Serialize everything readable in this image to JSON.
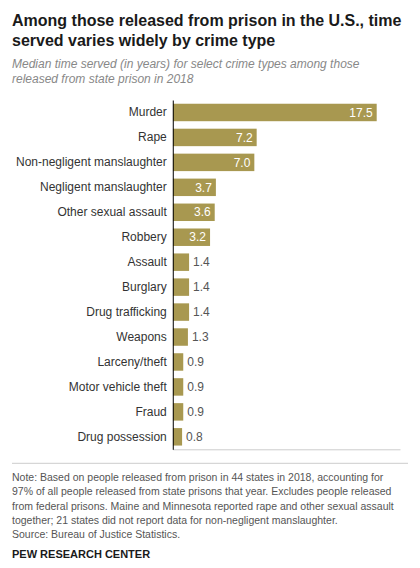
{
  "chart_data": {
    "type": "bar",
    "orientation": "horizontal",
    "title": "Among those released from prison in the U.S., time\nserved varies widely by crime type",
    "subtitle": "Median time served (in years) for select crime types among those\nreleased from state prison in 2018",
    "categories": [
      "Drug possession",
      "Fraud",
      "Motor vehicle theft",
      "Larceny/theft",
      "Weapons",
      "Drug trafficking",
      "Burglary",
      "Assault",
      "Robbery",
      "Other sexual assault",
      "Negligent manslaughter",
      "Non-negligent manslaughter",
      "Rape",
      "Murder"
    ],
    "values": [
      0.8,
      0.9,
      0.9,
      0.9,
      1.3,
      1.4,
      1.4,
      1.4,
      3.2,
      3.6,
      3.7,
      7.0,
      7.2,
      17.5
    ],
    "value_labels": [
      "0.8",
      "0.9",
      "0.9",
      "0.9",
      "1.3",
      "1.4",
      "1.4",
      "1.4",
      "3.2",
      "3.6",
      "3.7",
      "7.0",
      "7.2",
      "17.5"
    ],
    "color": "#A89850",
    "xlim": [
      0,
      19.5
    ],
    "data_labels": true,
    "tick_labels": "y",
    "grid": false,
    "note": [
      "Note: Based on people released from prison in 44 states in 2018, accounting for",
      "97% of all people released from state prisons that year. Excludes people released",
      "from federal prisons. Maine and Minnesota reported rape and other sexual assault",
      "together; 21 states did not report data for non-negligent manslaughter.",
      "Source: Bureau of Justice Statistics."
    ],
    "footer": "PEW RESEARCH CENTER"
  }
}
